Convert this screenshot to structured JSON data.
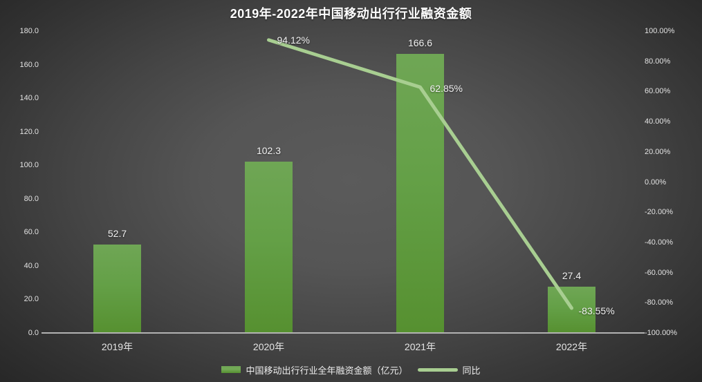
{
  "title": "2019年-2022年中国移动出行行业融资金额",
  "colors": {
    "bar_top": "#6fa655",
    "bar_bottom": "#569030",
    "line": "#a8ce91",
    "axis_line": "#b3b3b3",
    "tick_text": "#e2e2e2",
    "label_text": "#f2f2f2",
    "background_center": "#5b5b5b",
    "background_edge": "#262626"
  },
  "legend": [
    {
      "type": "bar",
      "label": "中国移动出行行业全年融资金额（亿元）"
    },
    {
      "type": "line",
      "label": "同比"
    }
  ],
  "chart_data": {
    "type": "bar+line combo",
    "title": "2019年-2022年中国移动出行行业融资金额",
    "categories": [
      "2019年",
      "2020年",
      "2021年",
      "2022年"
    ],
    "series": [
      {
        "name": "中国移动出行行业全年融资金额（亿元）",
        "type": "bar",
        "axis": "left",
        "values": [
          52.7,
          102.3,
          166.6,
          27.4
        ],
        "labels": [
          "52.7",
          "102.3",
          "166.6",
          "27.4"
        ]
      },
      {
        "name": "同比",
        "type": "line",
        "axis": "right",
        "values": [
          null,
          94.12,
          62.85,
          -83.55
        ],
        "labels": [
          null,
          "94.12%",
          "62.85%",
          "-83.55%"
        ]
      }
    ],
    "left_axis": {
      "min": 0,
      "max": 180,
      "step": 20,
      "ticks": [
        "180.0",
        "160.0",
        "140.0",
        "120.0",
        "100.0",
        "80.0",
        "60.0",
        "40.0",
        "20.0",
        "0.0"
      ]
    },
    "right_axis": {
      "min": -100,
      "max": 100,
      "step": 20,
      "ticks": [
        "100.00%",
        "80.00%",
        "60.00%",
        "40.00%",
        "20.00%",
        "0.00%",
        "-20.00%",
        "-40.00%",
        "-60.00%",
        "-80.00%",
        "-100.00%"
      ]
    },
    "grid": false,
    "legend_position": "bottom"
  }
}
